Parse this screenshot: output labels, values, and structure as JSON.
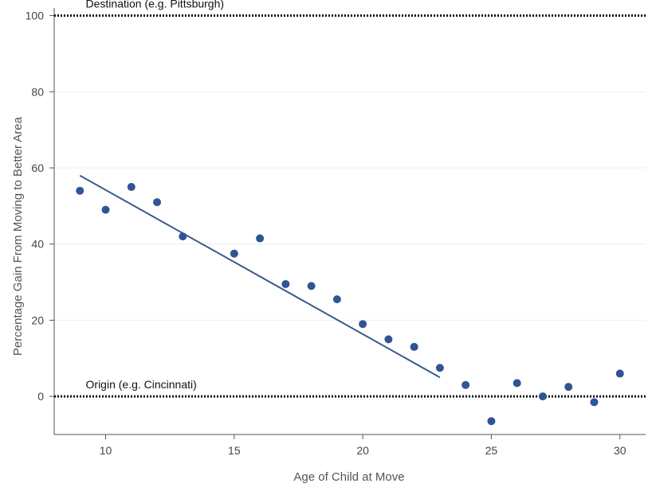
{
  "chart_data": {
    "type": "scatter",
    "title": "",
    "xlabel": "Age of Child at Move",
    "ylabel": "Percentage Gain From Moving to Better Area",
    "xlim": [
      8,
      31
    ],
    "ylim": [
      -10,
      102
    ],
    "x_ticks": [
      10,
      15,
      20,
      25,
      30
    ],
    "y_ticks": [
      0,
      20,
      40,
      60,
      80,
      100
    ],
    "grid": "horizontal",
    "colors": {
      "points": "#2f5596",
      "fit_line": "#3a5a8c",
      "grid": "#eeeeee",
      "reference_lines": "#111111"
    },
    "points": {
      "x": [
        9,
        10,
        11,
        12,
        13,
        15,
        16,
        17,
        18,
        19,
        20,
        21,
        22,
        23,
        24,
        25,
        26,
        27,
        28,
        29,
        30
      ],
      "y": [
        54,
        49,
        55,
        51,
        42,
        37.5,
        41.5,
        29.5,
        29,
        25.5,
        19,
        15,
        13,
        7.5,
        3,
        -6.5,
        3.5,
        0,
        2.5,
        -1.5,
        6
      ]
    },
    "fit_line": {
      "x": [
        9,
        23
      ],
      "y": [
        58,
        5
      ]
    },
    "reference_lines": [
      {
        "y": 100,
        "label": "Destination (e.g. Pittsburgh)"
      },
      {
        "y": 0,
        "label": "Origin (e.g. Cincinnati)"
      }
    ]
  }
}
